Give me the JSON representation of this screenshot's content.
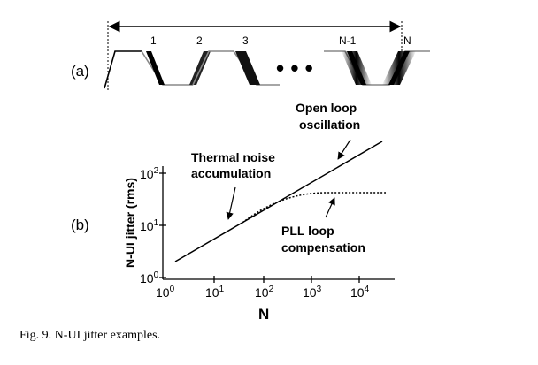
{
  "panel_a": {
    "label": "(a)",
    "transition_labels": [
      "1",
      "2",
      "3",
      "N-1",
      "N"
    ],
    "ellipsis_label": "• • •"
  },
  "panel_b": {
    "label": "(b)",
    "xlabel": "N",
    "ylabel": "N-UI jitter (rms)",
    "x_ticks": [
      "10^0",
      "10^1",
      "10^2",
      "10^3",
      "10^4"
    ],
    "y_ticks": [
      "10^0",
      "10^1",
      "10^2"
    ],
    "annotations": {
      "thermal": [
        "Thermal noise",
        "accumulation"
      ],
      "open_loop": [
        "Open loop",
        "oscillation"
      ],
      "pll": [
        "PLL loop",
        "compensation"
      ]
    }
  },
  "caption": "Fig. 9.   N-UI jitter examples."
}
